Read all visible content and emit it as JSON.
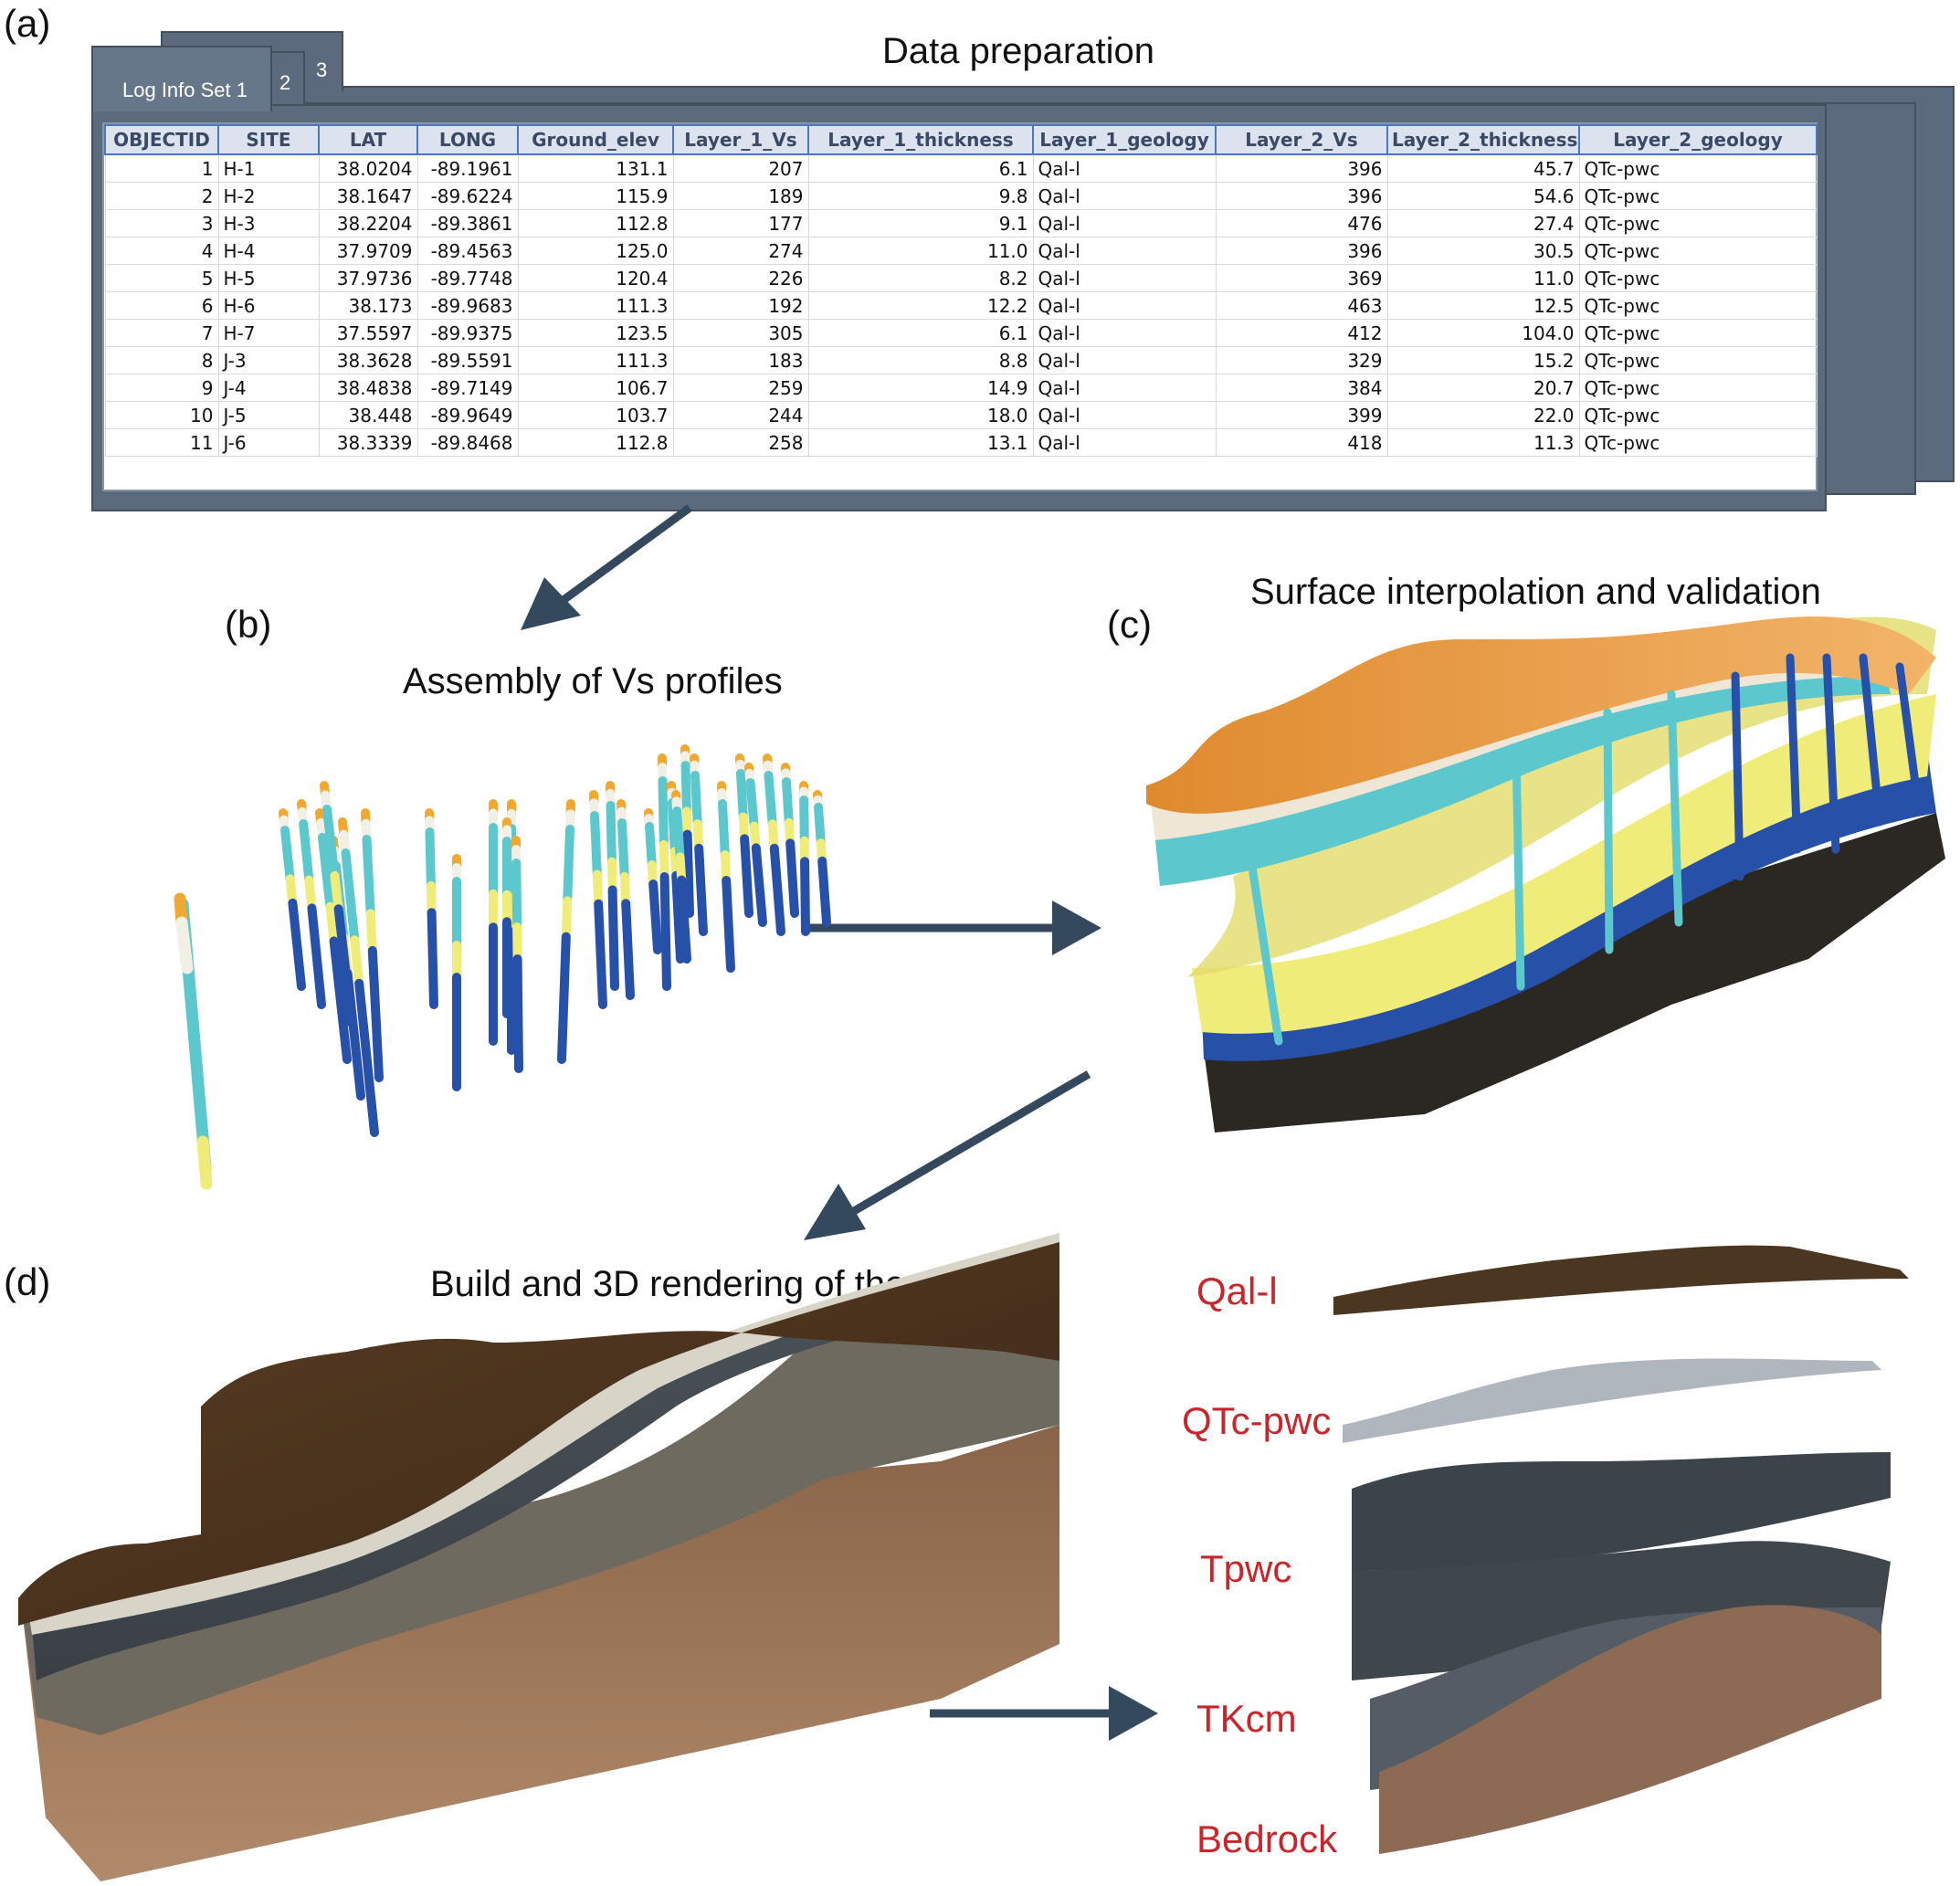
{
  "panels": {
    "a": {
      "label": "(a)",
      "title": "Data preparation"
    },
    "b": {
      "label": "(b)",
      "title": "Assembly of Vs profiles"
    },
    "c": {
      "label": "(c)",
      "title": "Surface interpolation and validation"
    },
    "d": {
      "label": "(d)",
      "title": "Build and 3D rendering of the model"
    }
  },
  "tabs": [
    "Log Info Set 1",
    "2",
    "3"
  ],
  "table": {
    "columns": [
      "OBJECTID",
      "SITE",
      "LAT",
      "LONG",
      "Ground_elev",
      "Layer_1_Vs",
      "Layer_1_thickness",
      "Layer_1_geology",
      "Layer_2_Vs",
      "Layer_2_thickness",
      "Layer_2_geology"
    ],
    "rows": [
      [
        "1",
        "H-1",
        "38.0204",
        "-89.1961",
        "131.1",
        "207",
        "6.1",
        "Qal-l",
        "396",
        "45.7",
        "QTc-pwc"
      ],
      [
        "2",
        "H-2",
        "38.1647",
        "-89.6224",
        "115.9",
        "189",
        "9.8",
        "Qal-l",
        "396",
        "54.6",
        "QTc-pwc"
      ],
      [
        "3",
        "H-3",
        "38.2204",
        "-89.3861",
        "112.8",
        "177",
        "9.1",
        "Qal-l",
        "476",
        "27.4",
        "QTc-pwc"
      ],
      [
        "4",
        "H-4",
        "37.9709",
        "-89.4563",
        "125.0",
        "274",
        "11.0",
        "Qal-l",
        "396",
        "30.5",
        "QTc-pwc"
      ],
      [
        "5",
        "H-5",
        "37.9736",
        "-89.7748",
        "120.4",
        "226",
        "8.2",
        "Qal-l",
        "369",
        "11.0",
        "QTc-pwc"
      ],
      [
        "6",
        "H-6",
        "38.173",
        "-89.9683",
        "111.3",
        "192",
        "12.2",
        "Qal-l",
        "463",
        "12.5",
        "QTc-pwc"
      ],
      [
        "7",
        "H-7",
        "37.5597",
        "-89.9375",
        "123.5",
        "305",
        "6.1",
        "Qal-l",
        "412",
        "104.0",
        "QTc-pwc"
      ],
      [
        "8",
        "J-3",
        "38.3628",
        "-89.5591",
        "111.3",
        "183",
        "8.8",
        "Qal-l",
        "329",
        "15.2",
        "QTc-pwc"
      ],
      [
        "9",
        "J-4",
        "38.4838",
        "-89.7149",
        "106.7",
        "259",
        "14.9",
        "Qal-l",
        "384",
        "20.7",
        "QTc-pwc"
      ],
      [
        "10",
        "J-5",
        "38.448",
        "-89.9649",
        "103.7",
        "244",
        "18.0",
        "Qal-l",
        "399",
        "22.0",
        "QTc-pwc"
      ],
      [
        "11",
        "J-6",
        "38.3339",
        "-89.8468",
        "112.8",
        "258",
        "13.1",
        "Qal-l",
        "418",
        "11.3",
        "QTc-pwc"
      ]
    ]
  },
  "layers": [
    "Qal-l",
    "QTc-pwc",
    "Tpwc",
    "TKcm",
    "Bedrock"
  ],
  "colors": {
    "window": "#5b6b7d",
    "header_border": "#4a78c0",
    "arrow": "#34495e",
    "layer_text": "#c8262b",
    "qal": "#e8952e",
    "cyan": "#5cc7cc",
    "yellow": "#f0ec7a",
    "blue": "#2750a8"
  }
}
